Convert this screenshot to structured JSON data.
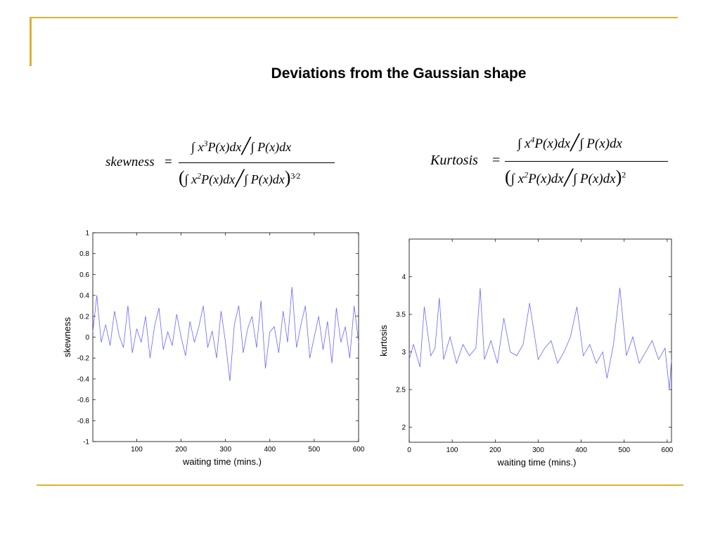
{
  "slide": {
    "title": "Deviations from the Gaussian shape",
    "accent_color": "#e0b033"
  },
  "formulas": {
    "skewness_label": "skewness",
    "kurtosis_label": "Kurtosis"
  },
  "chart_data": [
    {
      "type": "line",
      "title": "",
      "xlabel": "waiting time (mins.)",
      "ylabel": "skewness",
      "xlim": [
        1,
        600
      ],
      "ylim": [
        -1,
        1
      ],
      "xticks": [
        100,
        200,
        300,
        400,
        500,
        600
      ],
      "yticks": [
        1,
        0.8,
        0.6,
        0.4,
        0.2,
        0,
        -0.2,
        -0.4,
        -0.6,
        -0.8,
        -1
      ],
      "ytick_labels": [
        "1",
        "0.8",
        "0.6",
        "0.4",
        "0.2",
        "0",
        "-0.2",
        "-0.4",
        "-0.6",
        "-0.8",
        "-1"
      ],
      "line_color": "#6666ff",
      "series": [
        {
          "x": [
            1,
            10,
            20,
            30,
            40,
            50,
            60,
            70,
            80,
            90,
            100,
            110,
            120,
            130,
            140,
            150,
            160,
            170,
            180,
            190,
            200,
            210,
            220,
            230,
            240,
            250,
            260,
            270,
            280,
            290,
            300,
            310,
            320,
            330,
            340,
            350,
            360,
            370,
            380,
            390,
            400,
            410,
            420,
            430,
            440,
            450,
            460,
            470,
            480,
            490,
            500,
            510,
            520,
            530,
            540,
            550,
            560,
            570,
            580,
            590,
            600
          ],
          "y": [
            0.05,
            0.4,
            -0.05,
            0.12,
            -0.08,
            0.25,
            0.02,
            -0.1,
            0.3,
            -0.15,
            0.08,
            -0.05,
            0.2,
            -0.2,
            0.1,
            0.28,
            -0.12,
            0.05,
            -0.08,
            0.22,
            0.0,
            -0.18,
            0.15,
            -0.05,
            0.1,
            0.3,
            -0.1,
            0.06,
            -0.2,
            0.25,
            -0.05,
            -0.42,
            0.12,
            0.3,
            -0.15,
            0.08,
            0.2,
            -0.1,
            0.35,
            -0.3,
            0.05,
            0.1,
            -0.15,
            0.25,
            -0.05,
            0.48,
            -0.1,
            0.12,
            0.3,
            -0.2,
            0.0,
            0.2,
            -0.12,
            0.15,
            -0.25,
            0.28,
            -0.05,
            0.1,
            -0.2,
            0.3,
            -0.05
          ]
        }
      ]
    },
    {
      "type": "line",
      "title": "",
      "xlabel": "waiting time (mins.)",
      "ylabel": "kurtosis",
      "xlim": [
        0,
        610
      ],
      "ylim": [
        1.8,
        4.5
      ],
      "xticks": [
        0,
        100,
        200,
        300,
        400,
        500,
        600
      ],
      "yticks": [
        4,
        3.5,
        3,
        2.5,
        2
      ],
      "ytick_labels": [
        "4",
        "3.5",
        "3",
        "2.5",
        "2"
      ],
      "line_color": "#6666ff",
      "series": [
        {
          "x": [
            0,
            10,
            25,
            35,
            50,
            60,
            70,
            80,
            95,
            110,
            125,
            140,
            155,
            165,
            175,
            190,
            205,
            220,
            235,
            250,
            265,
            280,
            300,
            315,
            330,
            345,
            360,
            375,
            390,
            405,
            420,
            435,
            450,
            460,
            475,
            490,
            505,
            520,
            535,
            550,
            565,
            580,
            595,
            605,
            610
          ],
          "y": [
            2.9,
            3.1,
            2.8,
            3.6,
            2.95,
            3.05,
            3.72,
            2.9,
            3.2,
            2.85,
            3.1,
            2.95,
            3.05,
            3.85,
            2.9,
            3.15,
            2.85,
            3.45,
            3.0,
            2.95,
            3.1,
            3.65,
            2.9,
            3.05,
            3.15,
            2.85,
            3.0,
            3.2,
            3.6,
            2.95,
            3.1,
            2.85,
            3.0,
            2.65,
            3.1,
            3.85,
            2.95,
            3.2,
            2.85,
            3.0,
            3.15,
            2.9,
            3.05,
            2.5,
            2.9
          ]
        }
      ]
    }
  ]
}
